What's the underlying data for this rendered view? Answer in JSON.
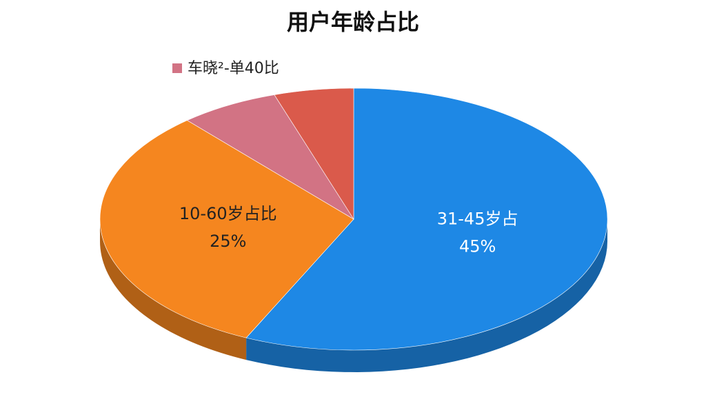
{
  "chart_data": {
    "type": "pie",
    "title": "用户年龄占比",
    "categories": [
      "31-45岁占",
      "10-60岁占比",
      "车晓²-单40比",
      null
    ],
    "values": [
      45,
      25,
      5,
      4
    ],
    "value_labels": [
      "45%",
      "25%",
      null,
      null
    ],
    "colors": [
      "#1e88e5",
      "#f5861f",
      "#d27384",
      "#da5a4b"
    ],
    "legend": true
  }
}
